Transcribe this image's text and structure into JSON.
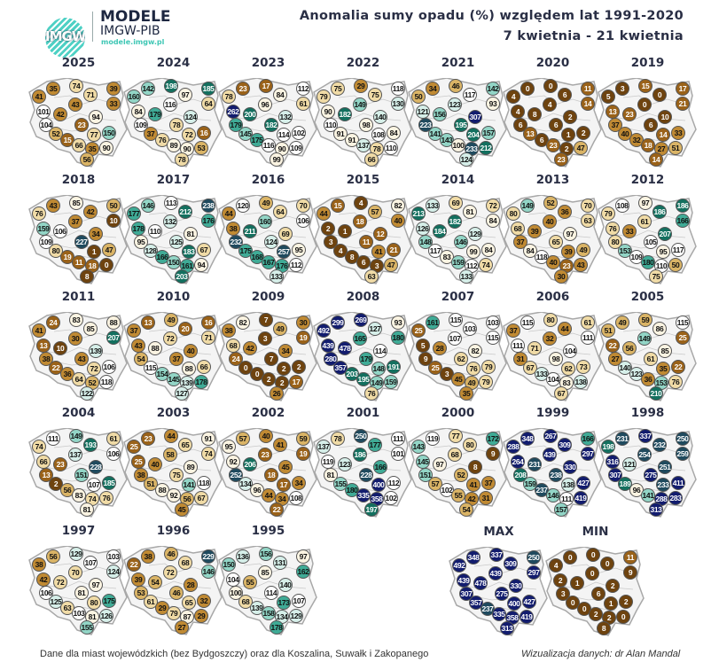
{
  "header": {
    "logo_text": "IMGW",
    "brand_name": "MODELE",
    "brand_org": "IMGW-PIB",
    "brand_url": "modele.imgw.pl",
    "title": "Anomalia sumy opadu (%) względem lat 1991-2020",
    "period": "7 kwietnia - 21 kwietnia"
  },
  "footer": {
    "note": "Dane dla miast wojewódzkich (bez Bydgoszczy) oraz dla Koszalina, Suwałk i Zakopanego",
    "credit": "Wizualizacja danych: dr Alan Mandal"
  },
  "colors": {
    "scale": [
      "#6e430f",
      "#9a6219",
      "#c08a33",
      "#dab466",
      "#f0dba6",
      "#fbf4e2",
      "#ffffff",
      "#d6efe9",
      "#92d5c6",
      "#3fab96",
      "#13705f",
      "#1f4a5e",
      "#121c6e"
    ],
    "bin_upper": [
      10,
      25,
      45,
      60,
      80,
      100,
      120,
      140,
      160,
      180,
      220,
      260,
      10000
    ],
    "title_text": "#2a2f45",
    "brand_teal": "#3fc7b5"
  },
  "chart_data": {
    "type": "table",
    "title": "Anomalia sumy opadu (%) względem lat 1991-2020",
    "subtitle": "7 kwietnia - 21 kwietnia",
    "unit": "% of 1991-2020 normal",
    "station_count": 20,
    "maps": [
      {
        "title": "2025",
        "values": [
          41,
          35,
          74,
          71,
          39,
          33,
          43,
          101,
          42,
          94,
          104,
          23,
          52,
          77,
          150,
          15,
          66,
          35,
          90,
          56
        ]
      },
      {
        "title": "2024",
        "values": [
          160,
          142,
          198,
          97,
          185,
          64,
          116,
          84,
          179,
          124,
          109,
          78,
          37,
          72,
          16,
          76,
          89,
          90,
          53,
          78
        ]
      },
      {
        "title": "2023",
        "values": [
          78,
          23,
          17,
          84,
          112,
          61,
          96,
          262,
          200,
          132,
          179,
          182,
          145,
          114,
          102,
          175,
          116,
          90,
          109,
          99
        ]
      },
      {
        "title": "2022",
        "values": [
          79,
          75,
          29,
          75,
          118,
          130,
          149,
          90,
          182,
          140,
          110,
          98,
          91,
          108,
          84,
          91,
          137,
          78,
          110,
          66
        ]
      },
      {
        "title": "2021",
        "values": [
          50,
          34,
          46,
          117,
          142,
          93,
          123,
          121,
          156,
          307,
          223,
          195,
          141,
          204,
          157,
          143,
          100,
          233,
          212,
          124
        ]
      },
      {
        "title": "2020",
        "values": [
          4,
          0,
          0,
          6,
          11,
          14,
          4,
          4,
          8,
          2,
          6,
          6,
          13,
          1,
          2,
          6,
          23,
          2,
          47,
          23
        ]
      },
      {
        "title": "2019",
        "values": [
          5,
          3,
          15,
          0,
          17,
          21,
          0,
          13,
          23,
          10,
          37,
          6,
          40,
          14,
          33,
          32,
          18,
          27,
          51,
          14
        ]
      },
      {
        "title": "2018",
        "values": [
          76,
          43,
          85,
          42,
          50,
          10,
          37,
          159,
          106,
          34,
          109,
          227,
          80,
          1,
          47,
          19,
          11,
          18,
          0,
          8
        ]
      },
      {
        "title": "2017",
        "values": [
          177,
          146,
          113,
          212,
          238,
          176,
          132,
          178,
          110,
          81,
          95,
          125,
          128,
          183,
          67,
          166,
          150,
          161,
          94,
          203
        ]
      },
      {
        "title": "2016",
        "values": [
          44,
          120,
          49,
          64,
          70,
          106,
          160,
          38,
          211,
          69,
          232,
          124,
          175,
          257,
          95,
          168,
          167,
          176,
          112,
          133
        ]
      },
      {
        "title": "2015",
        "values": [
          44,
          15,
          4,
          57,
          82,
          40,
          18,
          2,
          1,
          12,
          3,
          11,
          4,
          41,
          21,
          8,
          6,
          3,
          47,
          63
        ]
      },
      {
        "title": "2014",
        "values": [
          213,
          133,
          69,
          81,
          72,
          84,
          182,
          126,
          184,
          129,
          148,
          146,
          117,
          99,
          84,
          83,
          159,
          112,
          74,
          133
        ]
      },
      {
        "title": "2013",
        "values": [
          80,
          149,
          52,
          36,
          70,
          63,
          40,
          68,
          39,
          97,
          37,
          65,
          84,
          39,
          49,
          118,
          40,
          23,
          43,
          30
        ]
      },
      {
        "title": "2012",
        "values": [
          79,
          108,
          97,
          186,
          186,
          166,
          61,
          76,
          33,
          207,
          80,
          105,
          153,
          95,
          117,
          109,
          180,
          110,
          50,
          75
        ]
      },
      {
        "title": "2011",
        "values": [
          41,
          24,
          83,
          85,
          88,
          207,
          30,
          13,
          10,
          139,
          38,
          43,
          22,
          72,
          106,
          36,
          64,
          52,
          118,
          122
        ]
      },
      {
        "title": "2010",
        "values": [
          37,
          13,
          49,
          20,
          16,
          71,
          72,
          43,
          88,
          40,
          54,
          37,
          115,
          88,
          66,
          154,
          145,
          139,
          178,
          127
        ]
      },
      {
        "title": "2009",
        "values": [
          38,
          82,
          7,
          49,
          30,
          19,
          3,
          68,
          42,
          34,
          24,
          7,
          0,
          2,
          2,
          0,
          2,
          2,
          17,
          26
        ]
      },
      {
        "title": "2008",
        "values": [
          492,
          299,
          269,
          127,
          93,
          180,
          165,
          439,
          478,
          114,
          280,
          179,
          357,
          148,
          191,
          203,
          195,
          149,
          159,
          76
        ]
      },
      {
        "title": "2007",
        "values": [
          25,
          161,
          115,
          103,
          103,
          115,
          107,
          5,
          28,
          82,
          9,
          62,
          25,
          76,
          79,
          3,
          45,
          49,
          79,
          35
        ]
      },
      {
        "title": "2006",
        "values": [
          37,
          115,
          80,
          44,
          61,
          111,
          32,
          111,
          71,
          104,
          31,
          98,
          67,
          62,
          73,
          133,
          104,
          83,
          138,
          67
        ]
      },
      {
        "title": "2005",
        "values": [
          51,
          49,
          59,
          86,
          115,
          25,
          149,
          22,
          56,
          85,
          27,
          61,
          140,
          35,
          22,
          123,
          36,
          153,
          76,
          210
        ]
      },
      {
        "title": "2004",
        "values": [
          74,
          111,
          149,
          193,
          61,
          106,
          137,
          66,
          23,
          228,
          13,
          151,
          2,
          107,
          185,
          56,
          83,
          74,
          76,
          81
        ]
      },
      {
        "title": "2003",
        "values": [
          25,
          23,
          44,
          65,
          91,
          74,
          58,
          25,
          40,
          89,
          38,
          75,
          51,
          141,
          118,
          88,
          92,
          56,
          67,
          45
        ]
      },
      {
        "title": "2002",
        "values": [
          95,
          57,
          40,
          41,
          59,
          19,
          23,
          92,
          206,
          45,
          252,
          18,
          134,
          17,
          34,
          96,
          44,
          34,
          108,
          22
        ]
      },
      {
        "title": "2001",
        "values": [
          137,
          78,
          250,
          177,
          111,
          101,
          186,
          119,
          123,
          166,
          81,
          228,
          155,
          400,
          112,
          180,
          335,
          358,
          102,
          197
        ]
      },
      {
        "title": "2000",
        "values": [
          143,
          119,
          77,
          80,
          172,
          9,
          68,
          145,
          97,
          8,
          151,
          52,
          57,
          41,
          37,
          102,
          55,
          42,
          31,
          54
        ]
      },
      {
        "title": "1999",
        "values": [
          288,
          348,
          267,
          309,
          166,
          297,
          439,
          264,
          231,
          330,
          208,
          238,
          159,
          138,
          427,
          237,
          146,
          111,
          419,
          157
        ]
      },
      {
        "title": "1998",
        "values": [
          198,
          231,
          337,
          232,
          250,
          259,
          254,
          316,
          121,
          251,
          307,
          275,
          189,
          233,
          411,
          96,
          141,
          288,
          283,
          313
        ]
      },
      {
        "title": "1997",
        "values": [
          38,
          56,
          129,
          107,
          103,
          124,
          70,
          42,
          72,
          97,
          106,
          81,
          125,
          80,
          175,
          63,
          103,
          81,
          126,
          155
        ]
      },
      {
        "title": "1996",
        "values": [
          22,
          38,
          46,
          68,
          229,
          146,
          72,
          39,
          54,
          28,
          53,
          46,
          61,
          65,
          32,
          29,
          79,
          87,
          29,
          27
        ]
      },
      {
        "title": "1995",
        "values": [
          150,
          136,
          156,
          131,
          97,
          162,
          85,
          104,
          55,
          140,
          100,
          114,
          68,
          173,
          107,
          139,
          158,
          134,
          129,
          178
        ]
      },
      {
        "title": "MAX",
        "values": [
          492,
          348,
          337,
          309,
          250,
          297,
          439,
          439,
          478,
          330,
          307,
          275,
          357,
          400,
          427,
          237,
          335,
          358,
          419,
          313
        ]
      },
      {
        "title": "MIN",
        "values": [
          4,
          0,
          0,
          0,
          11,
          9,
          0,
          2,
          1,
          2,
          3,
          6,
          0,
          1,
          2,
          0,
          2,
          2,
          0,
          8
        ]
      }
    ]
  }
}
